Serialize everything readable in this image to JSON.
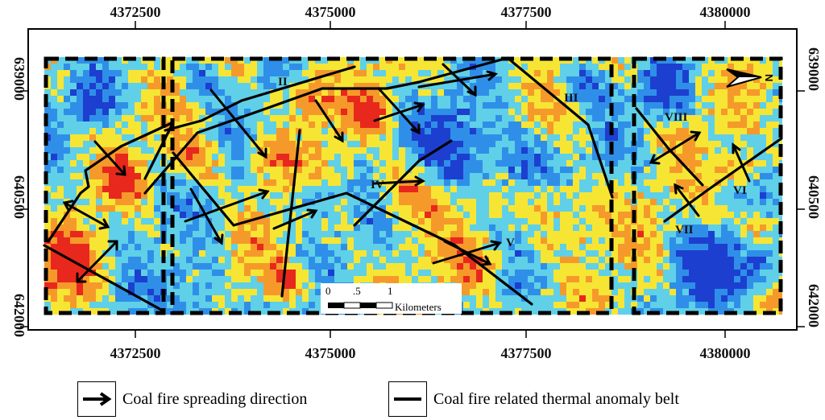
{
  "axes": {
    "top_ticks": [
      "4372500",
      "4375000",
      "4377500",
      "4380000"
    ],
    "bottom_ticks": [
      "4372500",
      "4375000",
      "4377500",
      "4380000"
    ],
    "left_ticks": [
      "639000",
      "640500",
      "642000"
    ],
    "right_ticks": [
      "639000",
      "640500",
      "642000"
    ]
  },
  "scale_bar": {
    "labels": [
      "0",
      ".5",
      "1"
    ],
    "unit": "Kilometers"
  },
  "north_arrow": {
    "label": "N"
  },
  "zone_labels": [
    "II",
    "III",
    "IV",
    "V",
    "VI",
    "VII",
    "VIII"
  ],
  "legend": {
    "arrow_label": "Coal fire spreading direction",
    "belt_label": "Coal fire related thermal anomaly belt"
  },
  "colors": {
    "cold": "#1c3fd0",
    "cool": "#2f8fe8",
    "mild": "#5fd0e8",
    "warm": "#f7e534",
    "hot": "#f59a2a",
    "hottest": "#e8281c"
  }
}
